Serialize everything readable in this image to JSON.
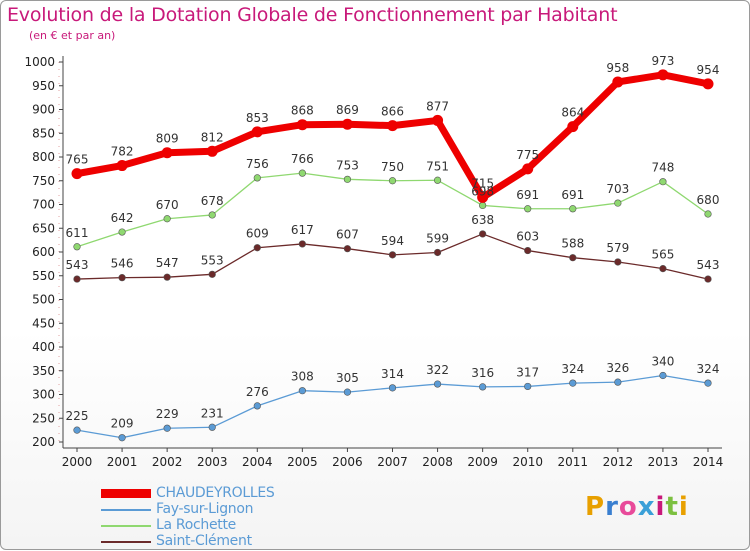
{
  "title": "Evolution de la Dotation Globale de Fonctionnement par Habitant",
  "subtitle": "(en € et par an)",
  "logo": {
    "text": "Proxiti",
    "letters": [
      "P",
      "r",
      "o",
      "x",
      "i",
      "t",
      "i"
    ],
    "colors": [
      "#e8a000",
      "#3a7fd0",
      "#e84a9a",
      "#3aa0d8",
      "#c8197a",
      "#7cc040",
      "#e8a000"
    ]
  },
  "chart_data": {
    "type": "line",
    "title": "Evolution de la Dotation Globale de Fonctionnement par Habitant",
    "subtitle": "(en € et par an)",
    "ylim": [
      200,
      1000
    ],
    "yticks": [
      200,
      250,
      300,
      350,
      400,
      450,
      500,
      550,
      600,
      650,
      700,
      750,
      800,
      850,
      900,
      950,
      1000
    ],
    "x": [
      "2000",
      "2001",
      "2002",
      "2003",
      "2004",
      "2005",
      "2006",
      "2007",
      "2008",
      "2009",
      "2010",
      "2011",
      "2012",
      "2013",
      "2014"
    ],
    "series": [
      {
        "name": "CHAUDEYROLLES",
        "color": "#ee0000",
        "values": [
          765,
          782,
          809,
          812,
          853,
          868,
          869,
          866,
          877,
          715,
          775,
          864,
          958,
          973,
          954
        ],
        "emphasis": true
      },
      {
        "name": "Fay-sur-Lignon",
        "color": "#5b9bd5",
        "values": [
          225,
          209,
          229,
          231,
          276,
          308,
          305,
          314,
          322,
          316,
          317,
          324,
          326,
          340,
          324
        ]
      },
      {
        "name": "La Rochette",
        "color": "#8fd870",
        "values": [
          611,
          642,
          670,
          678,
          756,
          766,
          753,
          750,
          751,
          698,
          691,
          691,
          703,
          748,
          680
        ]
      },
      {
        "name": "Saint-Clément",
        "color": "#6b2a2a",
        "values": [
          543,
          546,
          547,
          553,
          609,
          617,
          607,
          594,
          599,
          638,
          603,
          588,
          579,
          565,
          543
        ]
      }
    ],
    "data_labels": [
      [
        "765",
        "782",
        "809",
        "812",
        "853",
        "868",
        "869",
        "866",
        "877",
        "715",
        "775",
        "864",
        "958",
        "973",
        "954"
      ],
      [
        "225",
        "209",
        "229",
        "231",
        "276",
        "308",
        "305",
        "314",
        "322",
        "316",
        "317",
        "324",
        "326",
        "340",
        "324"
      ],
      [
        "611",
        "642",
        "670",
        "678",
        "756",
        "766",
        "753",
        "750",
        "751",
        "698",
        "691",
        "691",
        "703",
        "748",
        "680"
      ],
      [
        "543",
        "546",
        "547",
        "553",
        "609",
        "617",
        "607",
        "594",
        "599",
        "638",
        "603",
        "588",
        "579",
        "565",
        "543"
      ]
    ],
    "legend_position": "bottom-left",
    "grid": false
  }
}
